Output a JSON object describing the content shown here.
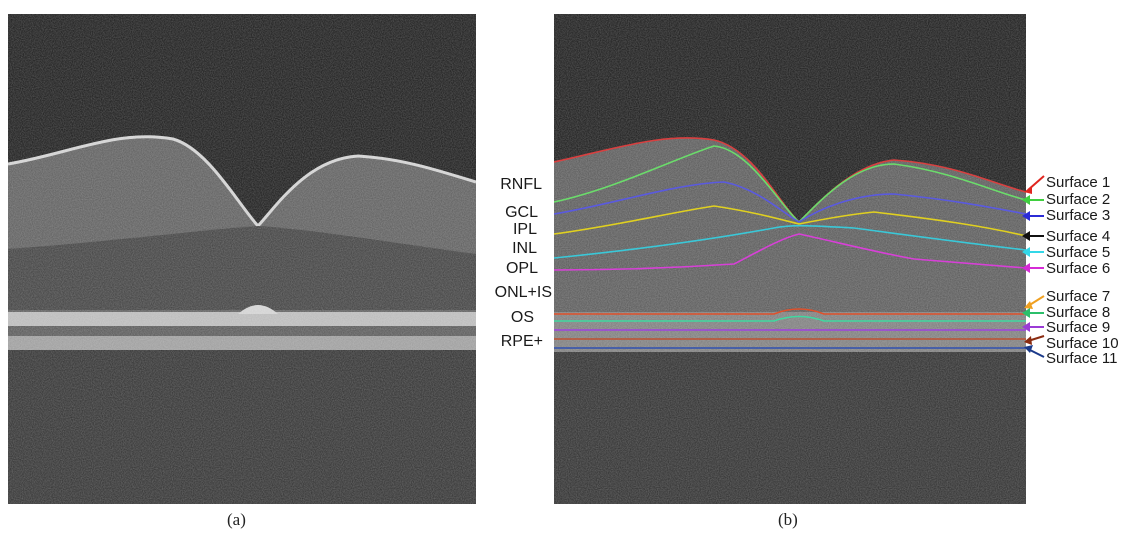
{
  "captions": {
    "a": "(a)",
    "b": "(b)"
  },
  "layers": [
    "RNFL",
    "GCL",
    "IPL",
    "INL",
    "OPL",
    "ONL+IS",
    "OS",
    "RPE+"
  ],
  "surfaces": [
    {
      "label": "Surface 1",
      "color": "#e0261f"
    },
    {
      "label": "Surface 2",
      "color": "#3fcf3f"
    },
    {
      "label": "Surface 3",
      "color": "#2b2bd6"
    },
    {
      "label": "Surface 4",
      "color": "#111111"
    },
    {
      "label": "Surface 5",
      "color": "#33d7e8"
    },
    {
      "label": "Surface 6",
      "color": "#d62bd6"
    },
    {
      "label": "Surface 7",
      "color": "#f0a020"
    },
    {
      "label": "Surface 8",
      "color": "#2bbf6a"
    },
    {
      "label": "Surface 9",
      "color": "#9b3bd6"
    },
    {
      "label": "Surface 10",
      "color": "#8a2b10"
    },
    {
      "label": "Surface 11",
      "color": "#1b3a8a"
    }
  ],
  "overlay_colors": {
    "s1": "#d84040",
    "s2": "#6bdc6b",
    "s3": "#5a5ae0",
    "s4": "#e0d020",
    "s5": "#3ac8d8",
    "s6": "#d840d8",
    "s7": "#e0502a",
    "s8": "#40d8a0",
    "s9": "#a040e0",
    "s10": "#c05030",
    "s11": "#3050b0"
  }
}
